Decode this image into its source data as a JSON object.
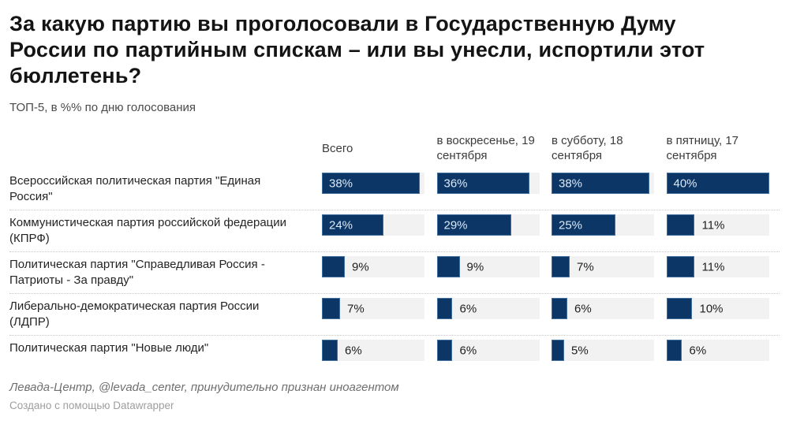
{
  "title_lines": [
    "За какую партию вы проголосовали в Государственную Думу",
    "России по партийным спискам – или вы унесли, испортили этот",
    "бюллетень?"
  ],
  "subtitle": "ТОП-5, в %% по дню голосования",
  "chart_data": {
    "type": "bar",
    "layout": "split-bars-per-column",
    "value_suffix": "%",
    "scale_max": 40,
    "grid": false,
    "columns": [
      "Всего",
      "в воскресенье, 19 сентября",
      "в субботу, 18 сентября",
      "в пятницу, 17 сентября"
    ],
    "rows": [
      {
        "label": "Всероссийская политическая партия \"Единая Россия\"",
        "values": [
          38,
          36,
          38,
          40
        ]
      },
      {
        "label": "Коммунистическая партия российской федерации (КПРФ)",
        "values": [
          24,
          29,
          25,
          11
        ]
      },
      {
        "label": "Политическая партия \"Справедливая Россия - Патриоты - За правду\"",
        "values": [
          9,
          9,
          7,
          11
        ]
      },
      {
        "label": "Либерально-демократическая партия России (ЛДПР)",
        "values": [
          7,
          6,
          6,
          10
        ]
      },
      {
        "label": "Политическая партия \"Новые люди\"",
        "values": [
          6,
          6,
          5,
          6
        ]
      }
    ],
    "colors": {
      "bar_fill": "#0b3666",
      "bar_edge": "#416f9d",
      "track": "#f1f2f1",
      "value_inside": "#dce8f6",
      "value_outside": "#1f1f1f"
    }
  },
  "footer": {
    "source": "Левада-Центр, @levada_center, принудительно признан иноагентом",
    "attribution": "Создано с помощью Datawrapper"
  }
}
